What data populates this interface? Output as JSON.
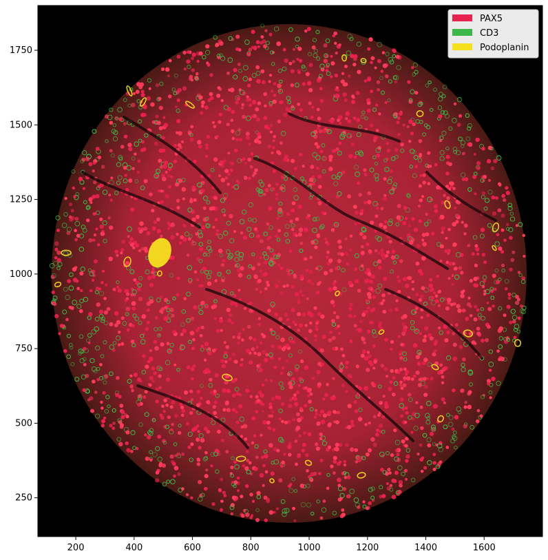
{
  "image": {
    "kind": "multiplex immunofluorescence tissue core",
    "background_color": "#000000",
    "x_ticks": [
      "200",
      "400",
      "600",
      "800",
      "1000",
      "1200",
      "1400",
      "1600"
    ],
    "y_ticks": [
      "250",
      "500",
      "750",
      "1000",
      "1250",
      "1500",
      "1750"
    ],
    "x_range": [
      70,
      1800
    ],
    "y_range": [
      120,
      1900
    ]
  },
  "legend": {
    "position": "top-right",
    "entries": [
      {
        "label": "PAX5",
        "color": "#e8224e"
      },
      {
        "label": "CD3",
        "color": "#3cb84a"
      },
      {
        "label": "Podoplanin",
        "color": "#f5e020"
      }
    ]
  }
}
